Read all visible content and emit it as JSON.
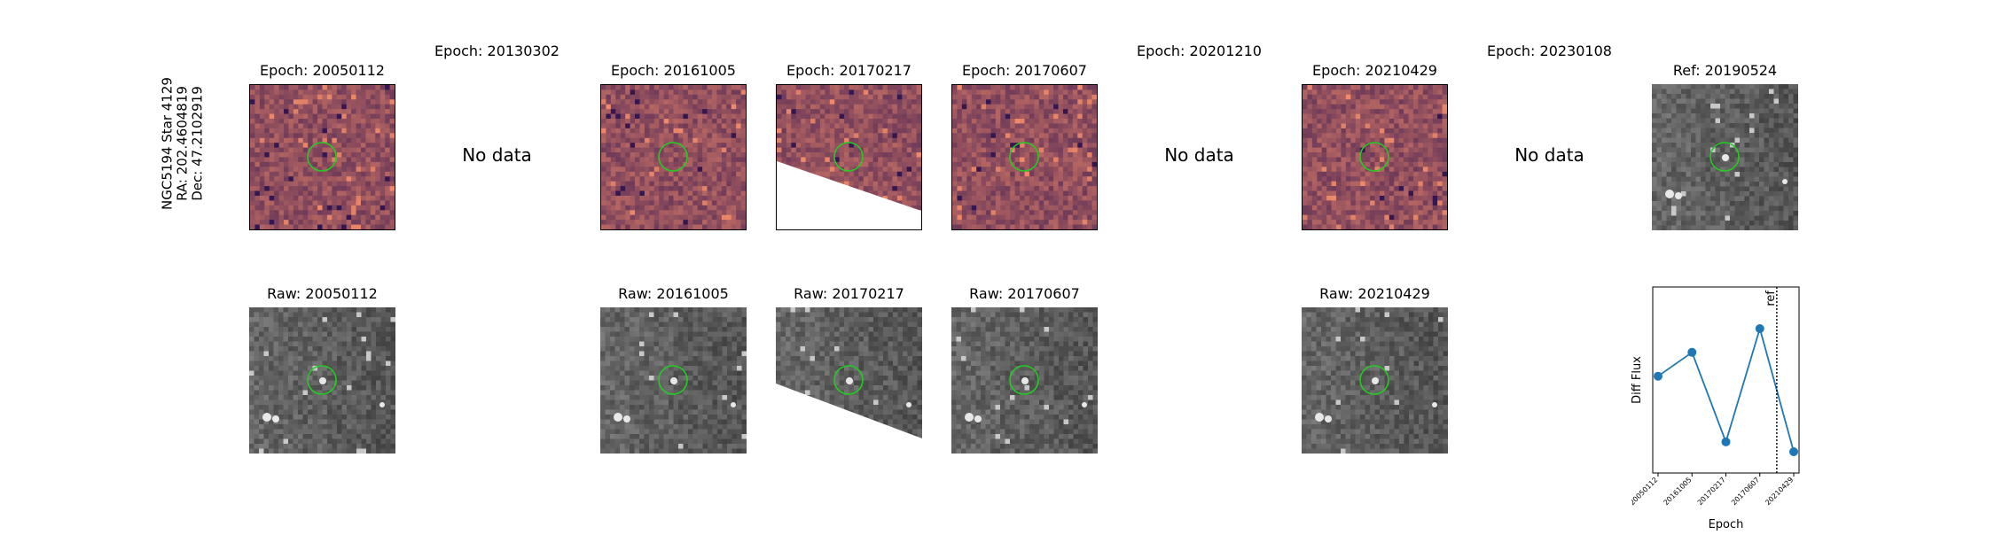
{
  "colors": {
    "marker_circle": "#22cc22",
    "series": "#1f77b4",
    "diff_dark": "#2a1050",
    "diff_bright": "#f08a6a"
  },
  "star_label": {
    "line1": "NGC5194 Star 4129",
    "line2": "RA: 202.4604819",
    "line3": "Dec: 47.2102919"
  },
  "diff_titles": {
    "p1": "Epoch: 20050112",
    "p2": "Epoch: 20130302",
    "p3": "Epoch: 20161005",
    "p4": "Epoch: 20170217",
    "p5": "Epoch: 20170607",
    "p6": "Epoch: 20201210",
    "p7": "Epoch: 20210429",
    "p8": "Epoch: 20230108",
    "ref": "Ref: 20190524"
  },
  "raw_titles": {
    "p1": "Raw: 20050112",
    "p3": "Raw: 20161005",
    "p4": "Raw: 20170217",
    "p5": "Raw: 20170607",
    "p7": "Raw: 20210429"
  },
  "no_data_text": "No data",
  "chart_data": {
    "type": "line",
    "title": "",
    "xlabel": "Epoch",
    "ylabel": "Diff Flux",
    "categories": [
      "20050112",
      "20161005",
      "20170217",
      "20170607",
      "20210429"
    ],
    "values": [
      0.54,
      0.71,
      0.07,
      0.88,
      0.0
    ],
    "x_index": [
      0,
      1,
      2,
      3,
      4
    ],
    "reference_line": {
      "label": "ref",
      "x_index": 3.5,
      "style": "dotted"
    },
    "y_ticks_shown": false,
    "grid": false,
    "legend": "none"
  }
}
